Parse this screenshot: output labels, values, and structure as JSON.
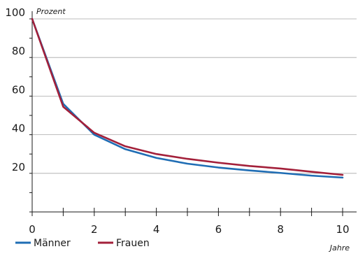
{
  "chart_data": {
    "type": "line",
    "ylabel": "Prozent",
    "xlabel": "Jahre",
    "x": [
      0,
      1,
      2,
      3,
      4,
      5,
      6,
      7,
      8,
      9,
      10
    ],
    "xlim": [
      0,
      10
    ],
    "ylim": [
      0,
      100
    ],
    "xticks": [
      0,
      2,
      4,
      6,
      8,
      10
    ],
    "yticks": [
      20,
      40,
      60,
      80,
      100
    ],
    "grid": "horizontal",
    "legend": "bottom-left",
    "series": [
      {
        "name": "Männer",
        "color": "#1f6db4",
        "values": [
          100,
          56,
          40,
          32.5,
          28,
          25,
          23,
          21.5,
          20.2,
          18.8,
          17.8
        ]
      },
      {
        "name": "Frauen",
        "color": "#a3203a",
        "values": [
          100,
          54.5,
          41,
          34,
          30,
          27.5,
          25.5,
          23.8,
          22.5,
          20.8,
          19.2
        ]
      }
    ]
  }
}
